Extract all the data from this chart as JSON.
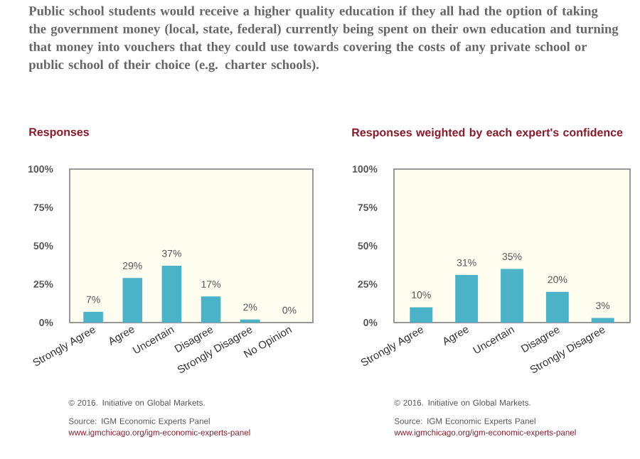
{
  "chart_data": [
    {
      "type": "bar",
      "title": "Public school students would receive a higher quality education if they all had the option of taking the government money (local, state, federal) currently being spent on their own education and turning that money into vouchers that they could use towards covering the costs of any private school or public school of their choice (e.g. charter schools).",
      "subtitle": "Responses",
      "categories": [
        "Strongly Agree",
        "Agree",
        "Uncertain",
        "Disagree",
        "Strongly Disagree",
        "No Opinion"
      ],
      "values": [
        7,
        29,
        37,
        17,
        2,
        0
      ],
      "value_labels": [
        "7%",
        "29%",
        "37%",
        "17%",
        "2%",
        "0%"
      ],
      "color": "#4ab3c8",
      "ylim": [
        0,
        100
      ],
      "yticks": [
        {
          "value": 0,
          "label": "0%"
        },
        {
          "value": 25,
          "label": "25%"
        },
        {
          "value": 50,
          "label": "50%"
        },
        {
          "value": 75,
          "label": "75%"
        },
        {
          "value": 100,
          "label": "100%"
        }
      ],
      "annotations": [
        "© 2016. Initiative on Global Markets.",
        "Source: IGM Economic Experts Panel",
        "www.igmchicago.org/igm-economic-experts-panel"
      ]
    },
    {
      "type": "bar",
      "title": "Responses weighted by each expert's confidence",
      "categories": [
        "Strongly Agree",
        "Agree",
        "Uncertain",
        "Disagree",
        "Strongly Disagree"
      ],
      "values": [
        10,
        31,
        35,
        20,
        3
      ],
      "value_labels": [
        "10%",
        "31%",
        "35%",
        "20%",
        "3%"
      ],
      "color": "#4ab3c8",
      "ylim": [
        0,
        100
      ],
      "yticks": [
        {
          "value": 0,
          "label": "0%"
        },
        {
          "value": 25,
          "label": "25%"
        },
        {
          "value": 50,
          "label": "50%"
        },
        {
          "value": 75,
          "label": "75%"
        },
        {
          "value": 100,
          "label": "100%"
        }
      ],
      "annotations": [
        "© 2016. Initiative on Global Markets.",
        "Source: IGM Economic Experts Panel",
        "www.igmchicago.org/igm-economic-experts-panel"
      ]
    }
  ]
}
